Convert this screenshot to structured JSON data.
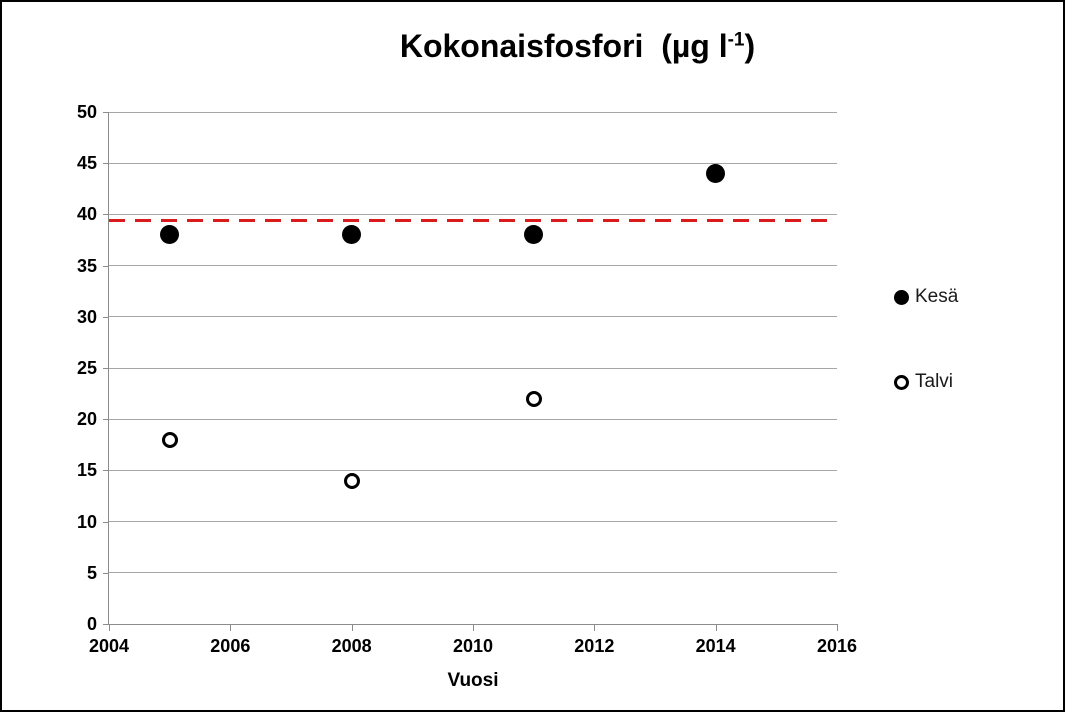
{
  "title": {
    "prefix": "Kokonaisfosfori  (µg l",
    "superscript": "-1",
    "suffix": ")"
  },
  "x_axis_title": "Vuosi",
  "legend": {
    "items": [
      {
        "label": "Kesä",
        "marker": "filled-circle"
      },
      {
        "label": "Talvi",
        "marker": "open-circle"
      }
    ],
    "position": "right"
  },
  "colors": {
    "marker": "#000000",
    "reference_line": "#da1b1b",
    "gridline": "#a6a6a6",
    "axis": "#8c8c8c",
    "background": "#ffffff",
    "frame_border": "#000000"
  },
  "chart_data": {
    "type": "scatter",
    "title": "Kokonaisfosfori (µg l-1)",
    "xlabel": "Vuosi",
    "ylabel": "",
    "xlim": [
      2004,
      2016
    ],
    "ylim": [
      0,
      50
    ],
    "x_ticks": [
      2004,
      2006,
      2008,
      2010,
      2012,
      2014,
      2016
    ],
    "y_ticks": [
      0,
      5,
      10,
      15,
      20,
      25,
      30,
      35,
      40,
      45,
      50
    ],
    "grid": "horizontal",
    "legend_position": "right",
    "series": [
      {
        "name": "Kesä",
        "marker": "filled-circle",
        "points": [
          [
            2005,
            38
          ],
          [
            2008,
            38
          ],
          [
            2011,
            38
          ],
          [
            2014,
            44
          ]
        ]
      },
      {
        "name": "Talvi",
        "marker": "open-circle",
        "points": [
          [
            2005,
            18
          ],
          [
            2008,
            14
          ],
          [
            2011,
            22
          ]
        ]
      }
    ],
    "reference_line": {
      "y": 39.4,
      "style": "dashed",
      "color": "red"
    }
  }
}
